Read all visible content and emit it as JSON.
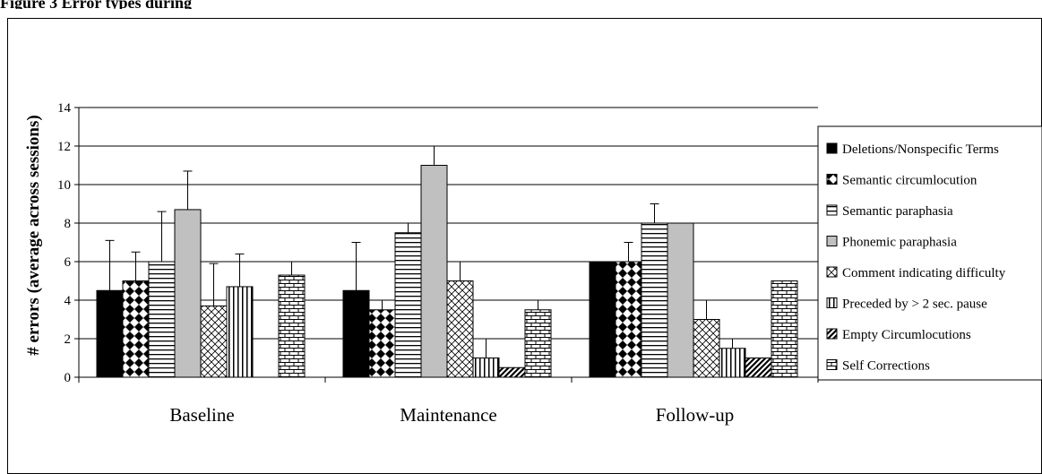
{
  "caption": "Figure 3 Error types during",
  "chart_data": {
    "type": "bar",
    "title": "",
    "xlabel": "",
    "ylabel": "# errors (average across sessions)",
    "ylim": [
      0,
      14
    ],
    "yticks": [
      0,
      2,
      4,
      6,
      8,
      10,
      12,
      14
    ],
    "grid": true,
    "legend_position": "right",
    "categories": [
      "Baseline",
      "Maintenance",
      "Follow-up"
    ],
    "series": [
      {
        "name": "Deletions/Nonspecific Terms",
        "values": [
          4.5,
          4.5,
          6.0
        ],
        "error_up": [
          2.6,
          2.5,
          0
        ],
        "pattern": "solid"
      },
      {
        "name": "Semantic circumlocution",
        "values": [
          5.0,
          3.5,
          6.0
        ],
        "error_up": [
          1.5,
          0.5,
          1.0
        ],
        "pattern": "diamonds"
      },
      {
        "name": "Semantic paraphasia",
        "values": [
          6.0,
          7.5,
          8.0
        ],
        "error_up": [
          2.6,
          0.5,
          1.0
        ],
        "pattern": "horizontal-lines"
      },
      {
        "name": "Phonemic paraphasia",
        "values": [
          8.7,
          11.0,
          8.0
        ],
        "error_up": [
          2.0,
          1.0,
          0
        ],
        "pattern": "gray"
      },
      {
        "name": "Comment indicating difficulty",
        "values": [
          3.7,
          5.0,
          3.0
        ],
        "error_up": [
          2.2,
          1.0,
          1.0
        ],
        "pattern": "crosshatch"
      },
      {
        "name": "Preceded by > 2 sec. pause",
        "values": [
          4.7,
          1.0,
          1.5
        ],
        "error_up": [
          1.7,
          1.0,
          0.5
        ],
        "pattern": "vertical-lines"
      },
      {
        "name": "Empty Circumlocutions",
        "values": [
          0,
          0.5,
          1.0
        ],
        "error_up": [
          0,
          0,
          0
        ],
        "pattern": "diagonal"
      },
      {
        "name": "Self Corrections",
        "values": [
          5.3,
          3.5,
          5.0
        ],
        "error_up": [
          0.7,
          0.5,
          0
        ],
        "pattern": "bricks"
      }
    ]
  }
}
